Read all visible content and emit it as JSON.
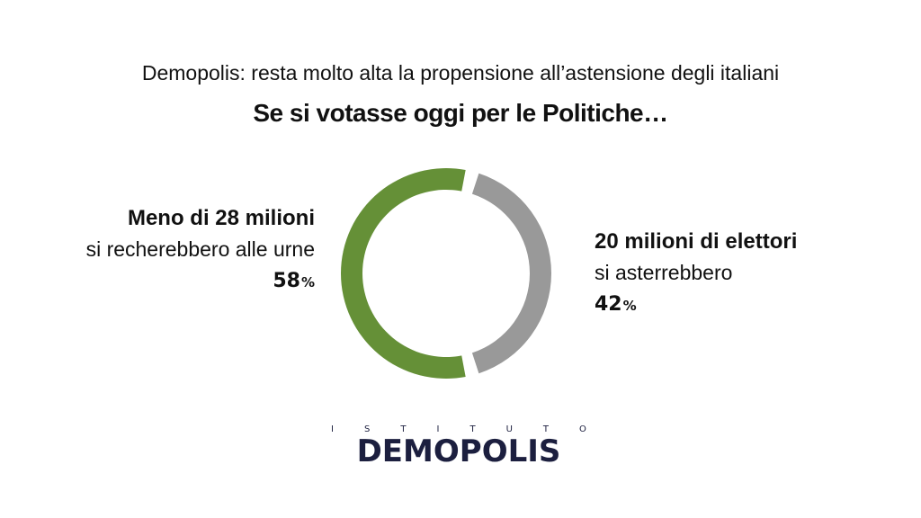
{
  "subtitle": "Demopolis: resta molto alta la propensione all’astensione degli italiani",
  "title": "Se si votasse oggi per le Politiche…",
  "colors": {
    "voters": "#659037",
    "abstainers": "#999999"
  },
  "left": {
    "headline": "Meno di 28 milioni",
    "text": "si recherebbero alle urne",
    "value": "58",
    "unit": "%"
  },
  "right": {
    "headline": "20 milioni di elettori",
    "text": "si asterrebbero",
    "value": "42",
    "unit": "%"
  },
  "chart_data": {
    "type": "pie",
    "title": "Se si votasse oggi per le Politiche…",
    "categories": [
      "si recherebbero alle urne",
      "si asterrebbero"
    ],
    "values": [
      58,
      42
    ],
    "unit": "%"
  },
  "logo": {
    "top_letters": [
      "I",
      "S",
      "T",
      "I",
      "T",
      "U",
      "T",
      "O"
    ],
    "main_a": "DEM",
    "main_o": "O",
    "main_b": "POLIS"
  }
}
